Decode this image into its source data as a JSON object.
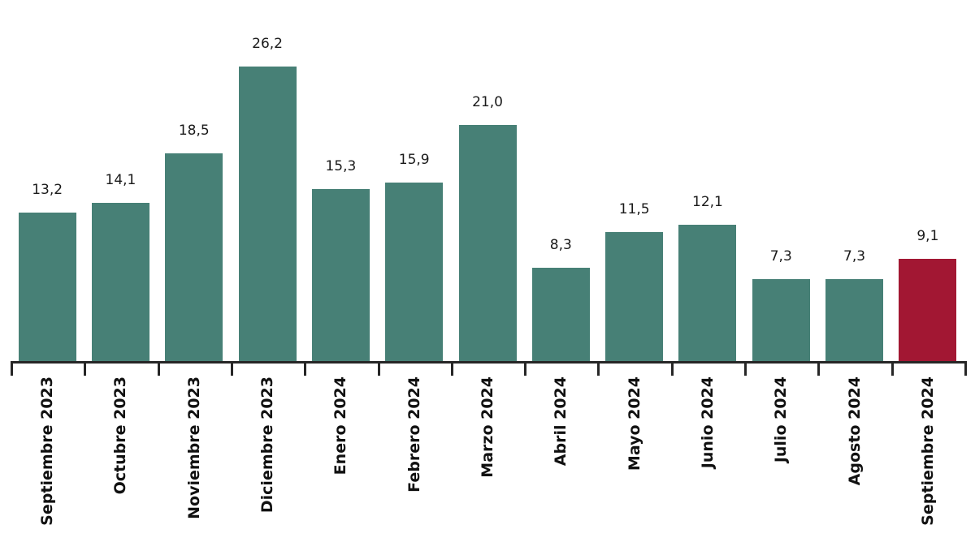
{
  "chart_data": {
    "type": "bar",
    "title": "",
    "xlabel": "",
    "ylabel": "",
    "categories": [
      "Septiembre 2023",
      "Octubre 2023",
      "Noviembre 2023",
      "Diciembre 2023",
      "Enero 2024",
      "Febrero 2024",
      "Marzo 2024",
      "Abril 2024",
      "Mayo 2024",
      "Junio 2024",
      "Julio 2024",
      "Agosto 2024",
      "Septiembre 2024"
    ],
    "values": [
      13.2,
      14.1,
      18.5,
      26.2,
      15.3,
      15.9,
      21.0,
      8.3,
      11.5,
      12.1,
      7.3,
      7.3,
      9.1
    ],
    "value_labels": [
      "13,2",
      "14,1",
      "18,5",
      "26,2",
      "15,3",
      "15,9",
      "21,0",
      "8,3",
      "11,5",
      "12,1",
      "7,3",
      "7,3",
      "9,1"
    ],
    "ylim": [
      0,
      28
    ],
    "grid": false,
    "legend_position": "none",
    "y_axis_visible": false,
    "decimal_separator": ",",
    "bar_color": "#478076",
    "highlight_color": "#a21733",
    "highlight_index": 12,
    "axis_color": "#262626",
    "label_color": "#111111",
    "value_label_color": "#1a1a1a",
    "background_color": "#ffffff"
  }
}
